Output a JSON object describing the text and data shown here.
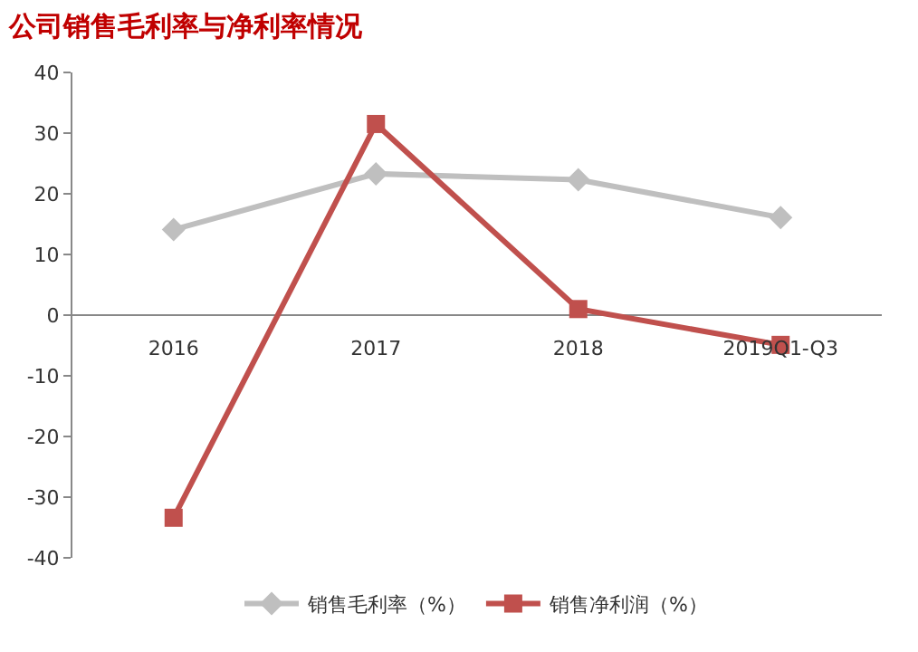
{
  "chart_data": {
    "type": "line",
    "title": "公司销售毛利率与净利率情况",
    "categories": [
      "2016",
      "2017",
      "2018",
      "2019Q1-Q3"
    ],
    "series": [
      {
        "name": "销售毛利率（%）",
        "color": "#bfbfbf",
        "marker": "diamond",
        "values": [
          14.1,
          23.3,
          22.3,
          16.1
        ]
      },
      {
        "name": "销售净利润（%）",
        "color": "#c0504d",
        "marker": "square",
        "values": [
          -33.4,
          31.5,
          1.0,
          -4.9
        ]
      }
    ],
    "ylim": [
      -40,
      40
    ],
    "yticks": [
      -40,
      -30,
      -20,
      -10,
      0,
      10,
      20,
      30,
      40
    ],
    "legend": "bottom"
  }
}
